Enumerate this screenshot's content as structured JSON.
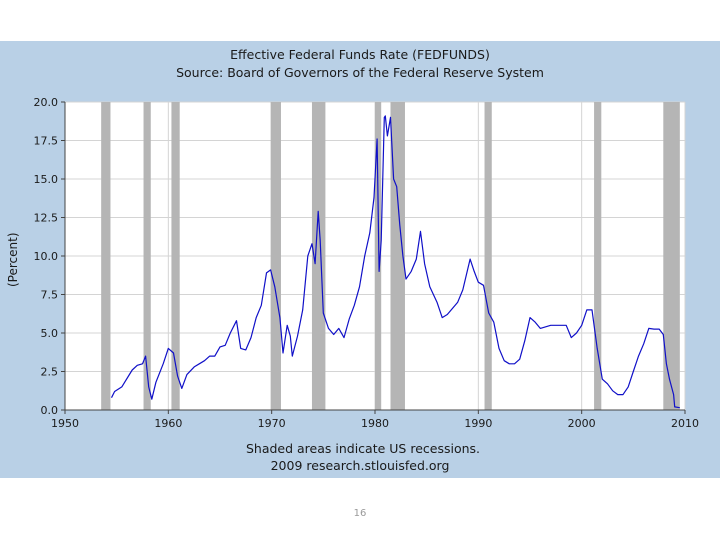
{
  "page": {
    "number": "16"
  },
  "chart_data": {
    "type": "line",
    "title": "Effective Federal Funds Rate (FEDFUNDS)",
    "subtitle": "Source: Board of Governors of the Federal Reserve System",
    "ylabel": "(Percent)",
    "xlabel": "",
    "note": "Shaded areas indicate US recessions.",
    "credit": "2009 research.stlouisfed.org",
    "xlim": [
      1950,
      2010
    ],
    "ylim": [
      0,
      20
    ],
    "x_ticks": [
      "1950",
      "1960",
      "1970",
      "1980",
      "1990",
      "2000",
      "2010"
    ],
    "y_ticks": [
      "0.0",
      "2.5",
      "5.0",
      "7.5",
      "10.0",
      "12.5",
      "15.0",
      "17.5",
      "20.0"
    ],
    "grid": true,
    "colors": {
      "background": "#b9d0e6",
      "plot": "#ffffff",
      "line": "#1010c8",
      "recession": "#b5b5b5",
      "grid": "#d4d4d4"
    },
    "recessions": [
      [
        1953.5,
        1954.4
      ],
      [
        1957.6,
        1958.3
      ],
      [
        1960.3,
        1961.1
      ],
      [
        1969.9,
        1970.9
      ],
      [
        1973.9,
        1975.2
      ],
      [
        1980.0,
        1980.6
      ],
      [
        1981.5,
        1982.9
      ],
      [
        1990.6,
        1991.3
      ],
      [
        2001.2,
        2001.9
      ],
      [
        2007.9,
        2009.5
      ]
    ],
    "series": [
      {
        "x": [
          1954.5,
          1954.8,
          1955.5,
          1956.5,
          1957.0,
          1957.5,
          1957.8,
          1958.1,
          1958.4,
          1958.8,
          1959.5,
          1960.0,
          1960.5,
          1960.9,
          1961.3,
          1961.8,
          1962.5,
          1963.0,
          1963.5,
          1964.0,
          1964.5,
          1965.0,
          1965.5,
          1966.0,
          1966.6,
          1967.0,
          1967.5,
          1968.0,
          1968.5,
          1969.0,
          1969.5,
          1969.9,
          1970.3,
          1970.8,
          1971.1,
          1971.5,
          1971.8,
          1972.0,
          1972.5,
          1973.0,
          1973.5,
          1973.9,
          1974.2,
          1974.5,
          1974.7,
          1975.0,
          1975.5,
          1976.0,
          1976.5,
          1977.0,
          1977.5,
          1978.0,
          1978.5,
          1979.0,
          1979.5,
          1979.9,
          1980.2,
          1980.4,
          1980.6,
          1980.9,
          1981.0,
          1981.2,
          1981.5,
          1981.8,
          1982.1,
          1982.4,
          1982.7,
          1983.0,
          1983.5,
          1984.0,
          1984.4,
          1984.8,
          1985.3,
          1986.0,
          1986.5,
          1987.0,
          1987.5,
          1988.0,
          1988.5,
          1989.2,
          1989.6,
          1990.0,
          1990.5,
          1991.0,
          1991.5,
          1992.0,
          1992.5,
          1993.0,
          1993.5,
          1994.0,
          1994.5,
          1995.0,
          1995.5,
          1996.0,
          1997.0,
          1998.0,
          1998.5,
          1999.0,
          1999.5,
          2000.0,
          2000.5,
          2001.0,
          2001.5,
          2002.0,
          2002.5,
          2003.0,
          2003.5,
          2004.0,
          2004.5,
          2005.0,
          2005.5,
          2006.0,
          2006.5,
          2007.0,
          2007.5,
          2007.9,
          2008.2,
          2008.5,
          2008.9,
          2009.0,
          2009.5
        ],
        "y": [
          0.8,
          1.2,
          1.5,
          2.6,
          2.9,
          3.0,
          3.5,
          1.5,
          0.7,
          1.8,
          3.0,
          4.0,
          3.7,
          2.2,
          1.4,
          2.3,
          2.8,
          3.0,
          3.2,
          3.5,
          3.5,
          4.1,
          4.2,
          5.0,
          5.8,
          4.0,
          3.9,
          4.7,
          6.0,
          6.8,
          8.9,
          9.1,
          8.0,
          6.0,
          3.7,
          5.5,
          4.8,
          3.5,
          4.8,
          6.5,
          10.0,
          10.8,
          9.5,
          12.9,
          11.0,
          6.3,
          5.3,
          4.9,
          5.3,
          4.7,
          5.9,
          6.8,
          8.0,
          10.0,
          11.5,
          13.8,
          17.6,
          9.0,
          11.0,
          19.0,
          19.1,
          17.8,
          19.0,
          15.0,
          14.5,
          12.0,
          10.0,
          8.5,
          9.0,
          9.8,
          11.6,
          9.5,
          8.0,
          7.0,
          6.0,
          6.2,
          6.6,
          7.0,
          7.8,
          9.8,
          9.0,
          8.3,
          8.1,
          6.3,
          5.7,
          4.0,
          3.2,
          3.0,
          3.0,
          3.3,
          4.5,
          6.0,
          5.7,
          5.3,
          5.5,
          5.5,
          5.5,
          4.7,
          5.0,
          5.5,
          6.5,
          6.5,
          4.0,
          2.0,
          1.7,
          1.25,
          1.0,
          1.0,
          1.5,
          2.5,
          3.5,
          4.3,
          5.3,
          5.25,
          5.25,
          4.9,
          3.0,
          2.0,
          1.0,
          0.2,
          0.15
        ]
      }
    ]
  }
}
